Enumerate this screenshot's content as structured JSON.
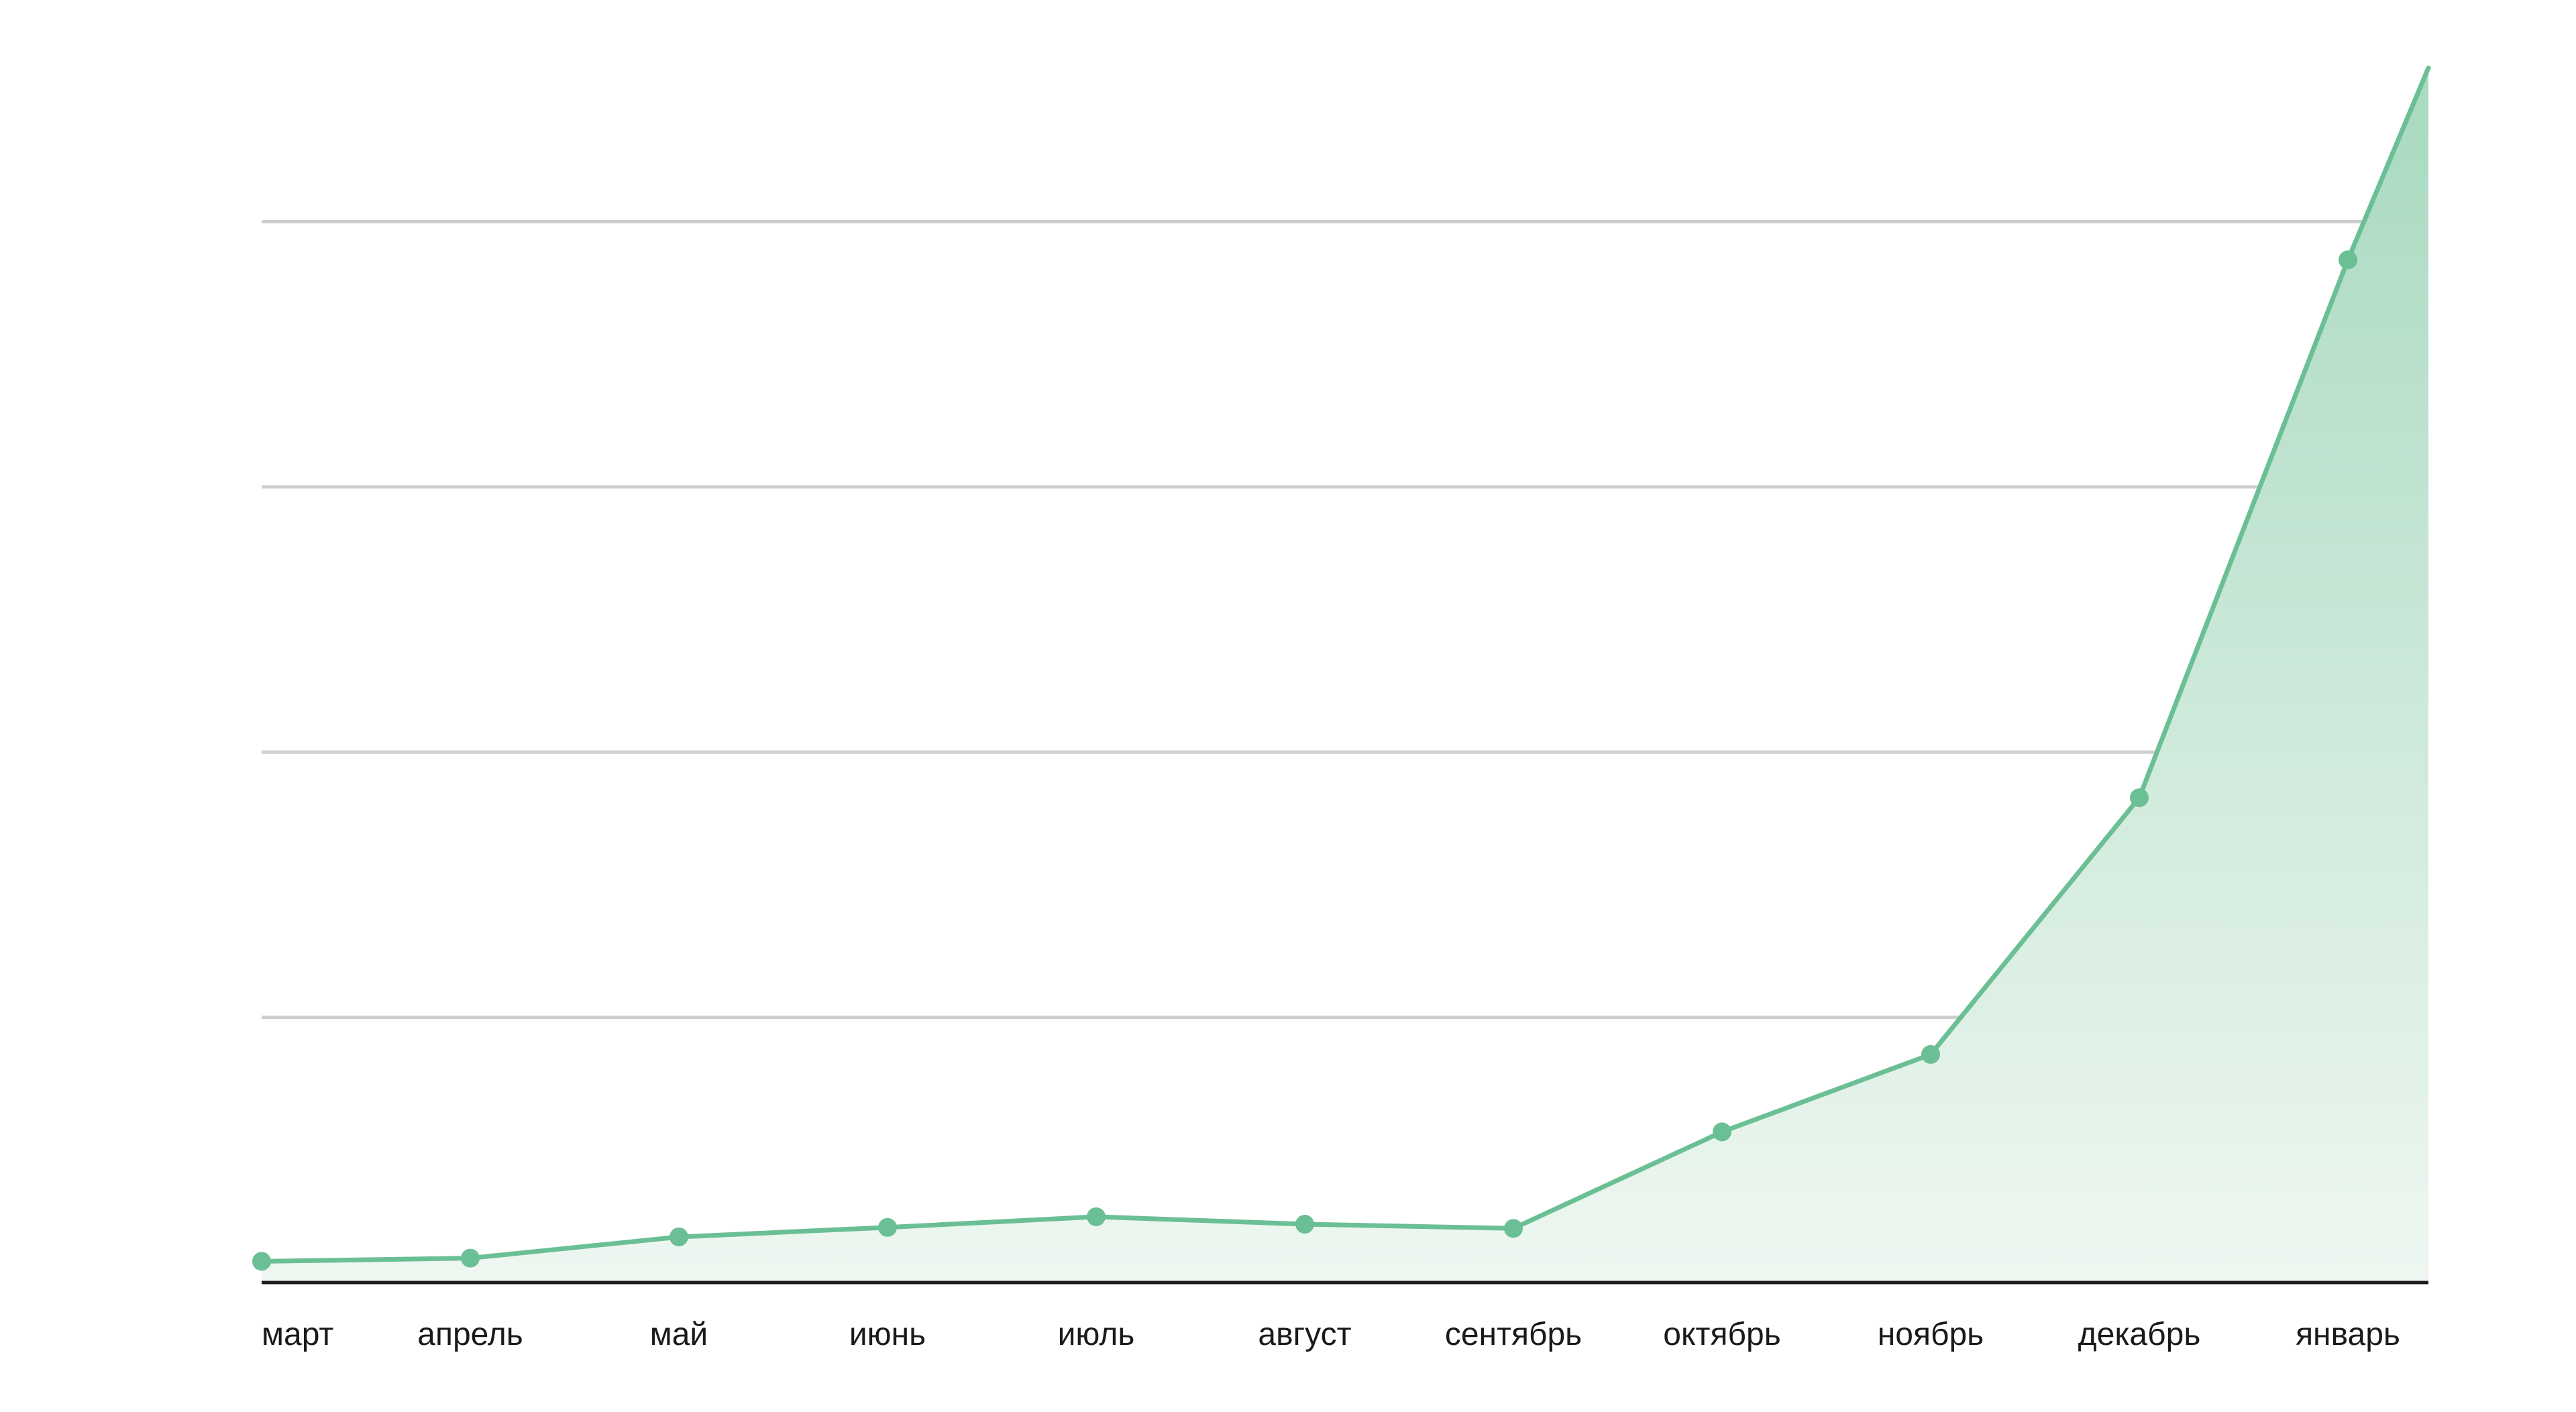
{
  "chart_data": {
    "type": "area",
    "title": "",
    "xlabel": "",
    "ylabel": "",
    "categories": [
      "март",
      "апрель",
      "май",
      "июнь",
      "июль",
      "август",
      "сентябрь",
      "октябрь",
      "ноябрь",
      "декабрь",
      "январь"
    ],
    "series": [
      {
        "values": [
          0.2,
          0.23,
          0.43,
          0.52,
          0.62,
          0.55,
          0.51,
          1.42,
          2.15,
          4.57,
          9.64
        ]
      }
    ],
    "end_value": 11.45,
    "ylim": [
      0,
      11.9
    ],
    "gridlines": [
      2.5,
      5,
      7.5,
      10
    ],
    "y_tick_labels_shown": false,
    "legend": "none",
    "colors": {
      "line": "#6bbf94",
      "marker": "#6bbf94",
      "fill_top": "#a8d9bf",
      "fill_bottom": "#eef7f1",
      "grid": "#cfcfcf",
      "baseline": "#1a1a1a"
    }
  }
}
